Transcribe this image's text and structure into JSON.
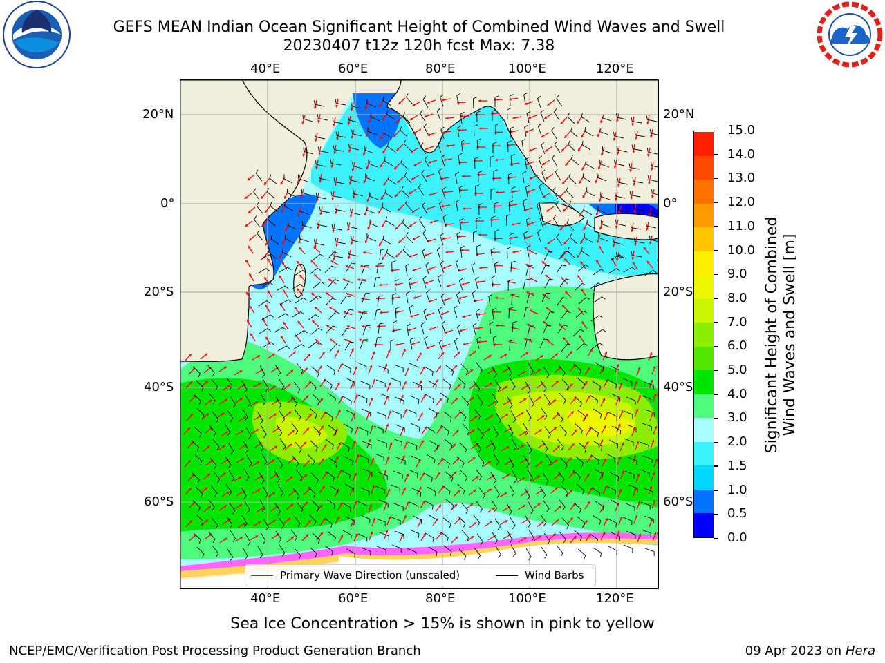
{
  "title_line1": "GEFS MEAN Indian Ocean Significant Height of Combined Wind Waves and Swell",
  "title_line2": "20230407 t12z 120h fcst   Max: 7.38",
  "longitude_labels": [
    "40°E",
    "60°E",
    "80°E",
    "100°E",
    "120°E"
  ],
  "latitude_labels": [
    "20°N",
    "0°",
    "20°S",
    "40°S",
    "60°S"
  ],
  "colorbar": {
    "label_line1": "Significant Height of Combined",
    "label_line2": "Wind Waves and Swell [m]",
    "ticks": [
      "0.0",
      "0.5",
      "1.0",
      "1.5",
      "2.0",
      "3.0",
      "4.0",
      "5.0",
      "6.0",
      "7.0",
      "8.0",
      "9.0",
      "10.0",
      "11.0",
      "12.0",
      "13.0",
      "14.0",
      "15.0"
    ],
    "colors": [
      "#0000ff",
      "#0073ff",
      "#00d6ff",
      "#3cf2ff",
      "#a8fcff",
      "#4dfc7f",
      "#00e600",
      "#50e600",
      "#8cee00",
      "#c8f500",
      "#eef500",
      "#ffee00",
      "#ffc400",
      "#ff9b00",
      "#ff7200",
      "#ff4800",
      "#ff1e00"
    ]
  },
  "legend": {
    "wave_direction": "Primary Wave Direction (unscaled)",
    "wind_barbs": "Wind Barbs",
    "wave_color": "#ff0000",
    "barb_color": "#000000"
  },
  "footnote": "Sea Ice Concentration > 15% is shown in pink to yellow",
  "credit": "NCEP/EMC/Verification Post Processing Product Generation Branch",
  "date_prefix": "09 Apr 2023 on ",
  "date_machine": "Hera",
  "logos": {
    "left": "noaa-logo",
    "right": "nws-logo"
  }
}
